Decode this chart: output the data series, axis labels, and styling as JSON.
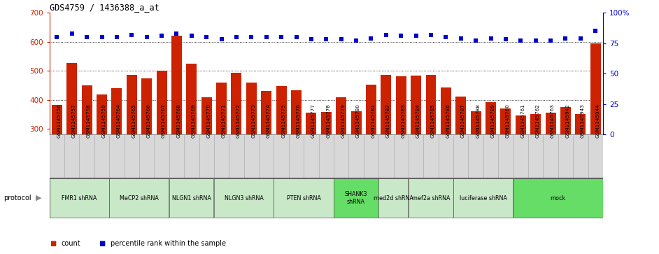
{
  "title": "GDS4759 / 1436388_a_at",
  "samples": [
    "GSM1145756",
    "GSM1145757",
    "GSM1145758",
    "GSM1145759",
    "GSM1145764",
    "GSM1145765",
    "GSM1145766",
    "GSM1145767",
    "GSM1145768",
    "GSM1145769",
    "GSM1145770",
    "GSM1145771",
    "GSM1145772",
    "GSM1145773",
    "GSM1145774",
    "GSM1145775",
    "GSM1145776",
    "GSM1145777",
    "GSM1145778",
    "GSM1145779",
    "GSM1145780",
    "GSM1145781",
    "GSM1145782",
    "GSM1145783",
    "GSM1145784",
    "GSM1145785",
    "GSM1145786",
    "GSM1145787",
    "GSM1145788",
    "GSM1145789",
    "GSM1145760",
    "GSM1145761",
    "GSM1145762",
    "GSM1145763",
    "GSM1145942",
    "GSM1145943",
    "GSM1145944"
  ],
  "counts": [
    383,
    527,
    449,
    418,
    440,
    487,
    473,
    500,
    622,
    525,
    408,
    460,
    493,
    460,
    430,
    447,
    433,
    355,
    358,
    408,
    360,
    452,
    487,
    482,
    483,
    487,
    443,
    412,
    360,
    393,
    370,
    345,
    350,
    355,
    375,
    350,
    595
  ],
  "percentiles": [
    80,
    83,
    80,
    80,
    80,
    82,
    80,
    81,
    83,
    81,
    80,
    78,
    80,
    80,
    80,
    80,
    80,
    78,
    78,
    78,
    77,
    79,
    82,
    81,
    81,
    82,
    80,
    79,
    77,
    79,
    78,
    77,
    77,
    77,
    79,
    79,
    85
  ],
  "protocols": [
    {
      "label": "FMR1 shRNA",
      "start": 0,
      "end": 4,
      "color": "#c8e8c8"
    },
    {
      "label": "MeCP2 shRNA",
      "start": 4,
      "end": 8,
      "color": "#c8e8c8"
    },
    {
      "label": "NLGN1 shRNA",
      "start": 8,
      "end": 11,
      "color": "#c8e8c8"
    },
    {
      "label": "NLGN3 shRNA",
      "start": 11,
      "end": 15,
      "color": "#c8e8c8"
    },
    {
      "label": "PTEN shRNA",
      "start": 15,
      "end": 19,
      "color": "#c8e8c8"
    },
    {
      "label": "SHANK3\nshRNA",
      "start": 19,
      "end": 22,
      "color": "#66dd66"
    },
    {
      "label": "med2d shRNA",
      "start": 22,
      "end": 24,
      "color": "#c8e8c8"
    },
    {
      "label": "mef2a shRNA",
      "start": 24,
      "end": 27,
      "color": "#c8e8c8"
    },
    {
      "label": "luciferase shRNA",
      "start": 27,
      "end": 31,
      "color": "#c8e8c8"
    },
    {
      "label": "mock",
      "start": 31,
      "end": 37,
      "color": "#66dd66"
    }
  ],
  "ylim_left": [
    280,
    700
  ],
  "ylim_right": [
    0,
    100
  ],
  "yticks_left": [
    300,
    400,
    500,
    600,
    700
  ],
  "yticks_right": [
    0,
    25,
    50,
    75,
    100
  ],
  "bar_color": "#cc2200",
  "dot_color": "#0000cc",
  "grid_color": "#000000",
  "bg_color": "#ffffff",
  "legend_count_color": "#cc2200",
  "legend_dot_color": "#0000cc",
  "xlabel_bg": "#d8d8d8"
}
